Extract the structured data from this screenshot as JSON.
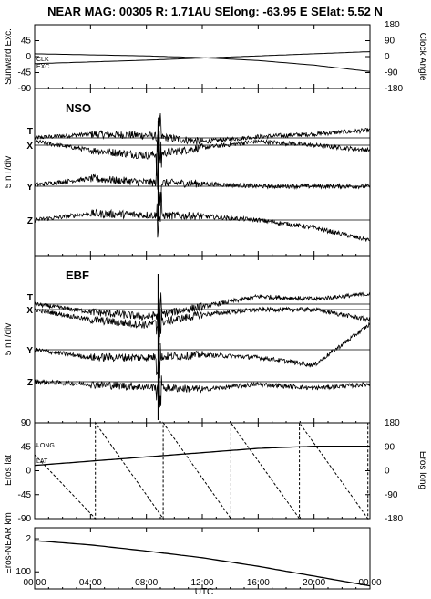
{
  "title": "NEAR MAG: 00305  R: 1.71AU  SElong:  -63.95 E  SElat:    5.52 N",
  "xaxis": {
    "label": "UTC",
    "ticks": [
      "00:00",
      "04:00",
      "08:00",
      "12:00",
      "16:00",
      "20:00",
      "00:00"
    ],
    "range_hours": [
      0,
      24
    ]
  },
  "panels": {
    "angles": {
      "left_label": "Sunward Exc.",
      "right_label": "Clock Angle",
      "left_ticks": [
        "45",
        "0",
        "-45",
        "-90"
      ],
      "right_ticks": [
        "180",
        "90",
        "0",
        "-90",
        "-180"
      ],
      "curve_labels": [
        "CLK",
        "EXC."
      ]
    },
    "nso": {
      "tag": "NSO",
      "ylabel": "5 nT/div",
      "components": [
        "T",
        "X",
        "Y",
        "Z"
      ]
    },
    "ebf": {
      "tag": "EBF",
      "ylabel": "5 nT/div",
      "components": [
        "T",
        "X",
        "Y",
        "Z"
      ]
    },
    "eros": {
      "left_label": "Eros lat",
      "right_label": "Eros long",
      "left_ticks": [
        "90",
        "45",
        "0",
        "-45",
        "-90"
      ],
      "right_ticks": [
        "180",
        "90",
        "0",
        "-90",
        "-180"
      ],
      "curve_labels": [
        "LONG",
        "LAT"
      ]
    },
    "dist": {
      "left_label": "Eros-NEAR km",
      "left_ticks": [
        "2",
        "100"
      ]
    }
  },
  "chart_data": [
    {
      "type": "line",
      "title": "",
      "xlabel": "UTC",
      "ylabel": "Sunward Exc.",
      "y2label": "Clock Angle",
      "ylim": [
        -90,
        90
      ],
      "y2lim": [
        -180,
        180
      ],
      "series": [
        {
          "name": "EXC.",
          "x": [
            0,
            4,
            8,
            12,
            16,
            20,
            24
          ],
          "values": [
            -20,
            -15,
            -10,
            -4,
            2,
            8,
            14
          ]
        },
        {
          "name": "CLK",
          "axis": "right",
          "x": [
            0,
            4,
            8,
            12,
            16,
            20,
            24
          ],
          "values": [
            16,
            10,
            4,
            -6,
            -22,
            -48,
            -84
          ]
        }
      ]
    },
    {
      "type": "line",
      "title": "NSO",
      "xlabel": "UTC",
      "ylabel": "5 nT/div",
      "series": [
        {
          "name": "T",
          "x": [
            0,
            4,
            8,
            12,
            16,
            20,
            24
          ],
          "values": [
            0.0,
            0.3,
            0.2,
            -0.3,
            0.1,
            0.3,
            0.6
          ]
        },
        {
          "name": "X",
          "x": [
            0,
            4,
            8,
            12,
            16,
            20,
            24
          ],
          "values": [
            0.3,
            -0.4,
            -0.8,
            -0.2,
            0.3,
            0.0,
            -0.4
          ]
        },
        {
          "name": "Y",
          "x": [
            0,
            4,
            8,
            12,
            16,
            20,
            24
          ],
          "values": [
            0.1,
            0.6,
            0.3,
            0.2,
            0.0,
            0.0,
            0.0
          ]
        },
        {
          "name": "Z",
          "x": [
            0,
            4,
            8,
            12,
            16,
            20,
            24
          ],
          "values": [
            0.0,
            0.5,
            0.4,
            0.3,
            0.0,
            -0.6,
            -1.6
          ]
        }
      ]
    },
    {
      "type": "line",
      "title": "EBF",
      "xlabel": "UTC",
      "ylabel": "5 nT/div",
      "series": [
        {
          "name": "T",
          "x": [
            0,
            4,
            8,
            12,
            16,
            20,
            24
          ],
          "values": [
            0.0,
            -0.6,
            -1.0,
            -0.2,
            0.6,
            0.4,
            0.8
          ]
        },
        {
          "name": "X",
          "x": [
            0,
            4,
            8,
            12,
            16,
            20,
            24
          ],
          "values": [
            0.0,
            -0.8,
            -1.2,
            -0.4,
            0.0,
            0.0,
            -0.8
          ]
        },
        {
          "name": "Y",
          "x": [
            0,
            4,
            8,
            12,
            16,
            20,
            24
          ],
          "values": [
            0.0,
            -0.6,
            -0.6,
            -0.4,
            -0.6,
            -1.2,
            2.0
          ]
        },
        {
          "name": "Z",
          "x": [
            0,
            4,
            8,
            12,
            16,
            20,
            24
          ],
          "values": [
            0.0,
            -0.2,
            -0.4,
            -0.6,
            -0.2,
            -0.5,
            -0.2
          ]
        }
      ]
    },
    {
      "type": "line",
      "title": "",
      "xlabel": "UTC",
      "ylabel": "Eros lat",
      "y2label": "Eros long",
      "ylim": [
        -90,
        90
      ],
      "y2lim": [
        -180,
        180
      ],
      "series": [
        {
          "name": "LAT",
          "x": [
            0,
            4,
            8,
            12,
            16,
            20,
            24
          ],
          "values": [
            10,
            18,
            26,
            34,
            42,
            46,
            46
          ]
        },
        {
          "name": "LONG",
          "axis": "right",
          "dashed": true,
          "x": [
            0,
            4.35,
            4.35,
            9.2,
            9.2,
            14.05,
            14.05,
            18.95,
            18.95,
            23.85,
            23.85,
            24
          ],
          "values": [
            60,
            -180,
            180,
            -180,
            180,
            -180,
            180,
            -180,
            180,
            -180,
            180,
            180
          ]
        }
      ]
    },
    {
      "type": "line",
      "title": "",
      "xlabel": "UTC",
      "ylabel": "Eros-NEAR km",
      "series": [
        {
          "name": "",
          "x": [
            0,
            4,
            8,
            12,
            16,
            20,
            24
          ],
          "values": [
            0.79,
            0.72,
            0.62,
            0.51,
            0.37,
            0.21,
            0.05
          ]
        }
      ]
    }
  ]
}
